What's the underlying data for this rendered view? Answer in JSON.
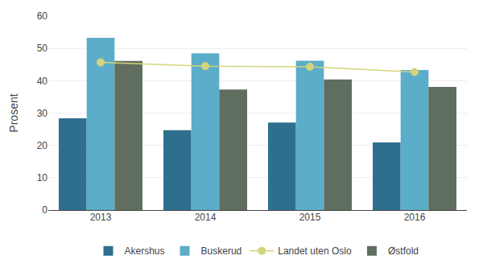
{
  "chart_data": {
    "type": "bar",
    "ylabel": "Prosent",
    "categories": [
      "2013",
      "2014",
      "2015",
      "2016"
    ],
    "series": [
      {
        "name": "Akershus",
        "type": "bar",
        "color": "#2e6f8e",
        "values": [
          28.4,
          24.7,
          27.1,
          20.9
        ]
      },
      {
        "name": "Buskerud",
        "type": "bar",
        "color": "#5badc9",
        "values": [
          53.3,
          48.5,
          46.2,
          43.3
        ]
      },
      {
        "name": "Landet uten Oslo",
        "type": "line",
        "color": "#d4d47a",
        "marker": "circle",
        "values": [
          45.7,
          44.5,
          44.3,
          42.7
        ]
      },
      {
        "name": "Østfold",
        "type": "bar",
        "color": "#5f6e5f",
        "values": [
          46.1,
          37.3,
          40.4,
          38.1
        ]
      }
    ],
    "ylim": [
      0,
      60
    ],
    "yticks": [
      0,
      10,
      20,
      30,
      40,
      50,
      60
    ],
    "grid": true,
    "legend": "bottom"
  }
}
